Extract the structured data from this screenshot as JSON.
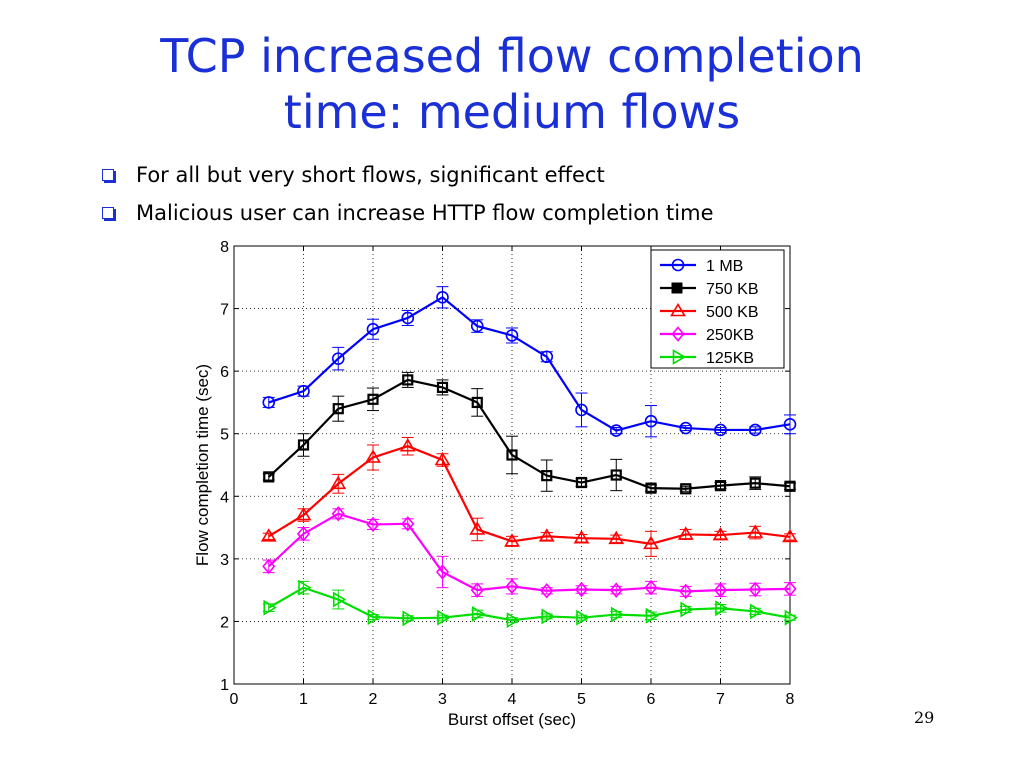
{
  "slide": {
    "title_line1": "TCP increased flow completion",
    "title_line2": "time: medium flows",
    "bullets": [
      "For all but very short flows, significant effect",
      "Malicious user can increase HTTP flow completion time"
    ],
    "page_number": "29"
  },
  "chart_data": {
    "type": "line",
    "xlabel": "Burst offset (sec)",
    "ylabel": "Flow completion time (sec)",
    "xlim": [
      0,
      8
    ],
    "ylim": [
      1,
      8
    ],
    "xticks": [
      "0",
      "1",
      "2",
      "3",
      "4",
      "5",
      "6",
      "7",
      "8"
    ],
    "yticks": [
      "1",
      "2",
      "3",
      "4",
      "5",
      "6",
      "7",
      "8"
    ],
    "grid": true,
    "legend_position": "top-right",
    "x": [
      0.5,
      1,
      1.5,
      2,
      2.5,
      3,
      3.5,
      4,
      4.5,
      5,
      5.5,
      6,
      6.5,
      7,
      7.5,
      8
    ],
    "series": [
      {
        "name": "1 MB",
        "color": "#0000ff",
        "marker": "circle",
        "values": [
          5.5,
          5.68,
          6.2,
          6.67,
          6.85,
          7.18,
          6.72,
          6.57,
          6.23,
          5.38,
          5.05,
          5.2,
          5.09,
          5.06,
          5.06,
          5.15
        ],
        "err": [
          0.08,
          0.08,
          0.18,
          0.16,
          0.12,
          0.17,
          0.1,
          0.12,
          0.08,
          0.27,
          0.05,
          0.25,
          0.04,
          0.04,
          0.05,
          0.15
        ]
      },
      {
        "name": "750 KB",
        "color": "#000000",
        "marker": "square",
        "values": [
          4.31,
          4.82,
          5.4,
          5.55,
          5.86,
          5.74,
          5.5,
          4.66,
          4.33,
          4.22,
          4.34,
          4.13,
          4.12,
          4.17,
          4.21,
          4.16
        ],
        "err": [
          0.05,
          0.18,
          0.2,
          0.18,
          0.12,
          0.12,
          0.22,
          0.3,
          0.25,
          0.06,
          0.25,
          0.05,
          0.04,
          0.05,
          0.1,
          0.05
        ]
      },
      {
        "name": "500 KB",
        "color": "#ff0000",
        "marker": "triangle",
        "values": [
          3.36,
          3.7,
          4.2,
          4.62,
          4.8,
          4.58,
          3.47,
          3.28,
          3.36,
          3.33,
          3.32,
          3.24,
          3.39,
          3.38,
          3.42,
          3.35
        ],
        "err": [
          0.05,
          0.1,
          0.15,
          0.2,
          0.14,
          0.1,
          0.18,
          0.08,
          0.06,
          0.06,
          0.06,
          0.2,
          0.08,
          0.06,
          0.1,
          0.05
        ]
      },
      {
        "name": "250KB",
        "color": "#ff00ff",
        "marker": "diamond",
        "values": [
          2.88,
          3.4,
          3.72,
          3.55,
          3.56,
          2.79,
          2.5,
          2.56,
          2.49,
          2.51,
          2.5,
          2.54,
          2.48,
          2.5,
          2.51,
          2.52
        ],
        "err": [
          0.1,
          0.1,
          0.08,
          0.08,
          0.08,
          0.25,
          0.1,
          0.12,
          0.05,
          0.06,
          0.06,
          0.1,
          0.08,
          0.1,
          0.1,
          0.1
        ]
      },
      {
        "name": "125KB",
        "color": "#00dd00",
        "marker": "triangle-right",
        "values": [
          2.22,
          2.54,
          2.35,
          2.07,
          2.05,
          2.06,
          2.12,
          2.02,
          2.08,
          2.06,
          2.11,
          2.09,
          2.19,
          2.21,
          2.16,
          2.06
        ],
        "err": [
          0.06,
          0.1,
          0.15,
          0.04,
          0.04,
          0.04,
          0.06,
          0.04,
          0.04,
          0.04,
          0.05,
          0.06,
          0.05,
          0.06,
          0.05,
          0.04
        ]
      }
    ]
  }
}
